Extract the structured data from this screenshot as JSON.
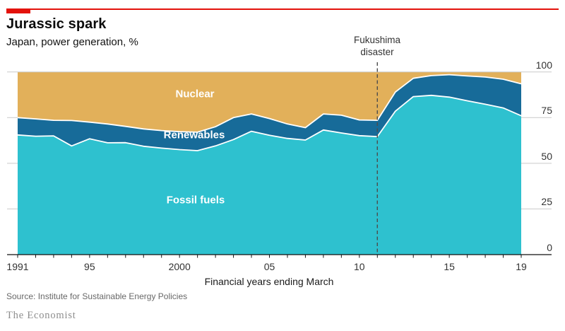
{
  "header": {
    "title": "Jurassic spark",
    "subtitle": "Japan, power generation, %"
  },
  "chart_data": {
    "type": "area",
    "stacked": true,
    "title": "Jurassic spark",
    "subtitle": "Japan, power generation, %",
    "xlabel": "Financial years ending March",
    "ylabel": "",
    "ylim": [
      0,
      100
    ],
    "grid": "horizontal",
    "legend_position": "labels-inside-areas",
    "x": [
      1991,
      1992,
      1993,
      1994,
      1995,
      1996,
      1997,
      1998,
      1999,
      2000,
      2001,
      2002,
      2003,
      2004,
      2005,
      2006,
      2007,
      2008,
      2009,
      2010,
      2011,
      2012,
      2013,
      2014,
      2015,
      2016,
      2017,
      2018,
      2019
    ],
    "series": [
      {
        "name": "Fossil fuels",
        "color": "#2EC1CF",
        "values": [
          65.5,
          64.8,
          65.0,
          59.5,
          63.4,
          61.2,
          61.3,
          59.3,
          58.3,
          57.5,
          56.9,
          59.5,
          63.0,
          67.5,
          65.3,
          63.6,
          62.7,
          68.2,
          66.6,
          65.1,
          64.6,
          78.5,
          86.5,
          87.2,
          86.2,
          84.2,
          82.3,
          80.3,
          76.0
        ]
      },
      {
        "name": "Renewables",
        "color": "#176B99",
        "values": [
          9.5,
          9.5,
          8.5,
          13.9,
          9.1,
          10.3,
          8.9,
          9.5,
          9.6,
          9.8,
          10.1,
          10.5,
          12.0,
          9.5,
          9.2,
          7.9,
          6.8,
          8.8,
          9.7,
          8.6,
          8.9,
          10.5,
          10.0,
          10.8,
          12.3,
          13.6,
          14.9,
          15.7,
          17.5
        ]
      },
      {
        "name": "Nuclear",
        "color": "#E2B05A",
        "values": [
          25.0,
          25.7,
          26.5,
          26.6,
          27.5,
          28.5,
          29.8,
          31.2,
          32.1,
          32.7,
          33.0,
          30.0,
          25.0,
          23.0,
          25.5,
          28.5,
          30.5,
          23.0,
          23.7,
          26.3,
          26.5,
          11.0,
          3.5,
          2.0,
          1.5,
          2.2,
          2.8,
          4.0,
          6.5
        ]
      }
    ],
    "y_ticks": [
      0,
      25,
      50,
      75,
      100
    ],
    "x_ticks": [
      {
        "year": 1991,
        "label": "1991"
      },
      {
        "year": 1995,
        "label": "95"
      },
      {
        "year": 2000,
        "label": "2000"
      },
      {
        "year": 2005,
        "label": "05"
      },
      {
        "year": 2010,
        "label": "10"
      },
      {
        "year": 2015,
        "label": "15"
      },
      {
        "year": 2019,
        "label": "19"
      }
    ],
    "annotation": {
      "line1": "Fukushima",
      "line2": "disaster",
      "year": 2011
    }
  },
  "footer": {
    "source": "Source: Institute for Sustainable Energy Policies",
    "brand": "The Economist"
  },
  "colors": {
    "accent_red": "#E3120B",
    "fossil_fuels": "#2EC1CF",
    "renewables": "#176B99",
    "nuclear": "#E2B05A",
    "gridline": "#C9C9C9",
    "axis_line": "#121212",
    "dashed_line": "#4d4d4d"
  }
}
